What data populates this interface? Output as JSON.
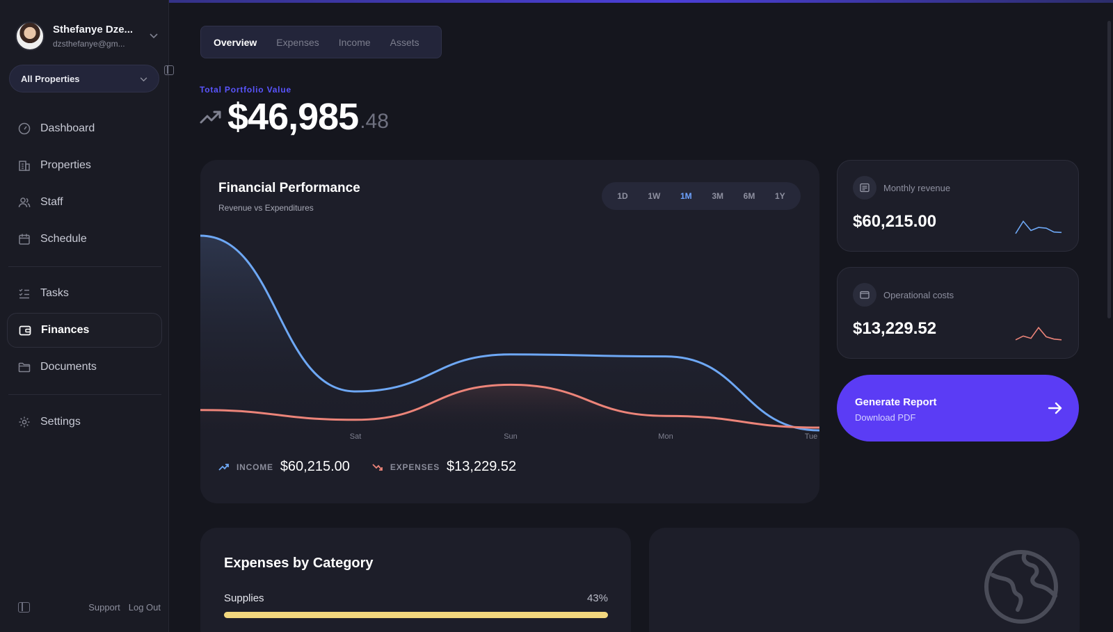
{
  "user": {
    "name": "Sthefanye Dze...",
    "email": "dzsthefanye@gm..."
  },
  "property_selector": {
    "value": "All Properties"
  },
  "sidebar": {
    "items": [
      {
        "label": "Dashboard",
        "icon": "dashboard-icon"
      },
      {
        "label": "Properties",
        "icon": "building-icon"
      },
      {
        "label": "Staff",
        "icon": "users-icon"
      },
      {
        "label": "Schedule",
        "icon": "calendar-icon"
      },
      {
        "label": "Tasks",
        "icon": "tasks-icon"
      },
      {
        "label": "Finances",
        "icon": "wallet-icon",
        "active": true
      },
      {
        "label": "Documents",
        "icon": "folder-icon"
      },
      {
        "label": "Settings",
        "icon": "gear-icon"
      }
    ],
    "support_label": "Support",
    "logout_label": "Log Out"
  },
  "tabs": [
    {
      "label": "Overview",
      "active": true
    },
    {
      "label": "Expenses"
    },
    {
      "label": "Income"
    },
    {
      "label": "Assets"
    }
  ],
  "portfolio": {
    "label": "Total Portfolio Value",
    "value_main": "$46,985",
    "value_decimal": ".48"
  },
  "financial_performance": {
    "title": "Financial Performance",
    "subtitle": "Revenue vs Expenditures",
    "periods": [
      "1D",
      "1W",
      "1M",
      "3M",
      "6M",
      "1Y"
    ],
    "active_period": "1M",
    "income_label": "INCOME",
    "income_value": "$60,215.00",
    "expenses_label": "EXPENSES",
    "expenses_value": "$13,229.52"
  },
  "chart_data": {
    "type": "area",
    "categories": [
      "",
      "Sat",
      "Sun",
      "Mon",
      "Tue"
    ],
    "series": [
      {
        "name": "INCOME",
        "color": "#6ea8f5",
        "values": [
          1.0,
          0.2,
          0.39,
          0.38,
          0.0
        ]
      },
      {
        "name": "EXPENSES",
        "color": "#ec8479",
        "values": [
          0.09,
          0.04,
          0.22,
          0.06,
          0.0
        ]
      }
    ],
    "ylim": [
      0,
      1
    ],
    "grid": false,
    "legend": "none"
  },
  "stats": [
    {
      "label": "Monthly revenue",
      "value": "$60,215.00",
      "icon": "receipt-icon",
      "spark_color": "#6ea8f5",
      "spark": [
        0.05,
        0.85,
        0.25,
        0.45,
        0.4,
        0.15,
        0.12
      ]
    },
    {
      "label": "Operational costs",
      "value": "$13,229.52",
      "icon": "wallet-icon",
      "spark_color": "#ec8479",
      "spark": [
        0.1,
        0.35,
        0.2,
        0.9,
        0.3,
        0.15,
        0.1
      ]
    }
  ],
  "generate_report": {
    "title": "Generate Report",
    "subtitle": "Download PDF",
    "color": "#5b3cf5"
  },
  "expenses_by_category": {
    "title": "Expenses by Category",
    "items": [
      {
        "label": "Supplies",
        "percent": 43,
        "percent_label": "43%",
        "color": "#f2d77e"
      }
    ]
  },
  "colors": {
    "accent": "#5a55ff",
    "income": "#6ea8f5",
    "expense": "#ec8479",
    "background": "#15161e",
    "card": "#1d1e29"
  }
}
